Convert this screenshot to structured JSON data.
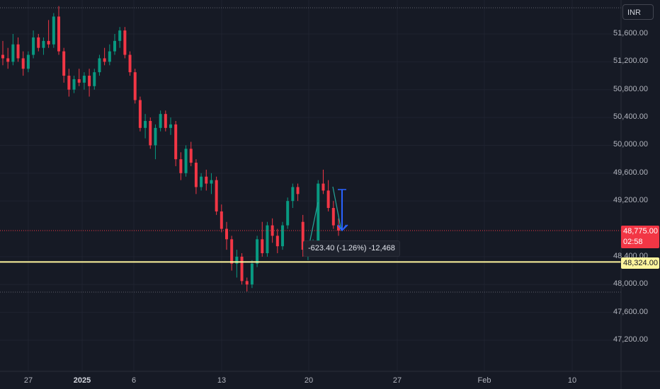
{
  "chart_data": {
    "type": "candlestick",
    "currency": "INR",
    "y_ticks": [
      "51,600.00",
      "51,200.00",
      "50,800.00",
      "50,400.00",
      "50,000.00",
      "49,600.00",
      "49,200.00",
      "48,400.00",
      "48,000.00",
      "47,600.00",
      "47,200.00"
    ],
    "y_tick_values": [
      51600,
      51200,
      50800,
      50400,
      50000,
      49600,
      49200,
      48400,
      48000,
      47600,
      47200
    ],
    "x_ticks": [
      {
        "label": "27",
        "bold": false
      },
      {
        "label": "2025",
        "bold": true
      },
      {
        "label": "6",
        "bold": false
      },
      {
        "label": "13",
        "bold": false
      },
      {
        "label": "20",
        "bold": false
      },
      {
        "label": "27",
        "bold": false
      },
      {
        "label": "Feb",
        "bold": false
      },
      {
        "label": "10",
        "bold": false
      }
    ],
    "last_price": "48,775.00",
    "countdown": "02:58",
    "horizontal_level": "48,324.00",
    "measure_text": "-623.40 (-1.26%) -12,468",
    "ohlc": [
      [
        51300,
        51500,
        51150,
        51250
      ],
      [
        51250,
        51400,
        51100,
        51200
      ],
      [
        51200,
        51600,
        51150,
        51450
      ],
      [
        51450,
        51550,
        51200,
        51250
      ],
      [
        51250,
        51350,
        51000,
        51100
      ],
      [
        51100,
        51350,
        51050,
        51300
      ],
      [
        51300,
        51650,
        51250,
        51550
      ],
      [
        51550,
        51600,
        51350,
        51400
      ],
      [
        51400,
        51550,
        51300,
        51500
      ],
      [
        51500,
        51800,
        51400,
        51450
      ],
      [
        51450,
        51900,
        51400,
        51850
      ],
      [
        51850,
        52000,
        51300,
        51350
      ],
      [
        51350,
        51400,
        50900,
        51000
      ],
      [
        51000,
        51100,
        50700,
        50800
      ],
      [
        50800,
        51000,
        50750,
        50950
      ],
      [
        50950,
        51100,
        50850,
        50900
      ],
      [
        50900,
        51050,
        50800,
        51000
      ],
      [
        51000,
        51100,
        50700,
        50850
      ],
      [
        50850,
        51100,
        50800,
        51050
      ],
      [
        51050,
        51300,
        51000,
        51250
      ],
      [
        51250,
        51400,
        51150,
        51200
      ],
      [
        51200,
        51450,
        51150,
        51350
      ],
      [
        51350,
        51600,
        51300,
        51500
      ],
      [
        51500,
        51700,
        51400,
        51650
      ],
      [
        51650,
        51700,
        51250,
        51300
      ],
      [
        51300,
        51350,
        51000,
        51050
      ],
      [
        51050,
        51100,
        50600,
        50650
      ],
      [
        50650,
        50700,
        50200,
        50250
      ],
      [
        50250,
        50450,
        50100,
        50350
      ],
      [
        50350,
        50400,
        49950,
        50000
      ],
      [
        50000,
        50300,
        49800,
        50250
      ],
      [
        50250,
        50500,
        50200,
        50450
      ],
      [
        50450,
        50500,
        50200,
        50250
      ],
      [
        50250,
        50400,
        50150,
        50300
      ],
      [
        50300,
        50350,
        49700,
        49800
      ],
      [
        49800,
        49900,
        49500,
        49600
      ],
      [
        49600,
        50000,
        49550,
        49950
      ],
      [
        49950,
        50050,
        49700,
        49750
      ],
      [
        49750,
        49800,
        49300,
        49400
      ],
      [
        49400,
        49600,
        49350,
        49550
      ],
      [
        49550,
        49650,
        49350,
        49450
      ],
      [
        49450,
        49600,
        49300,
        49500
      ],
      [
        49500,
        49550,
        49000,
        49050
      ],
      [
        49050,
        49150,
        48750,
        48800
      ],
      [
        48800,
        48900,
        48500,
        48650
      ],
      [
        48650,
        48700,
        48200,
        48300
      ],
      [
        48300,
        48500,
        48100,
        48400
      ],
      [
        48400,
        48450,
        48000,
        48050
      ],
      [
        48050,
        48100,
        47900,
        48000
      ],
      [
        48000,
        48350,
        47950,
        48300
      ],
      [
        48300,
        48700,
        48250,
        48650
      ],
      [
        48650,
        48900,
        48400,
        48450
      ],
      [
        48450,
        48900,
        48400,
        48850
      ],
      [
        48850,
        48950,
        48600,
        48700
      ],
      [
        48700,
        48800,
        48450,
        48550
      ],
      [
        48550,
        48900,
        48500,
        48850
      ],
      [
        48850,
        49250,
        48800,
        49200
      ],
      [
        49200,
        49450,
        49100,
        49400
      ],
      [
        49400,
        49450,
        49200,
        49300
      ],
      [
        48900,
        49000,
        48400,
        48500
      ],
      [
        48500,
        48600,
        48350,
        48550
      ],
      [
        48550,
        48650,
        48450,
        48600
      ],
      [
        48600,
        49500,
        48550,
        49450
      ],
      [
        49450,
        49650,
        49300,
        49350
      ],
      [
        49350,
        49500,
        49050,
        49100
      ],
      [
        49100,
        49200,
        48800,
        48850
      ],
      [
        48850,
        48950,
        48700,
        48775
      ]
    ]
  }
}
